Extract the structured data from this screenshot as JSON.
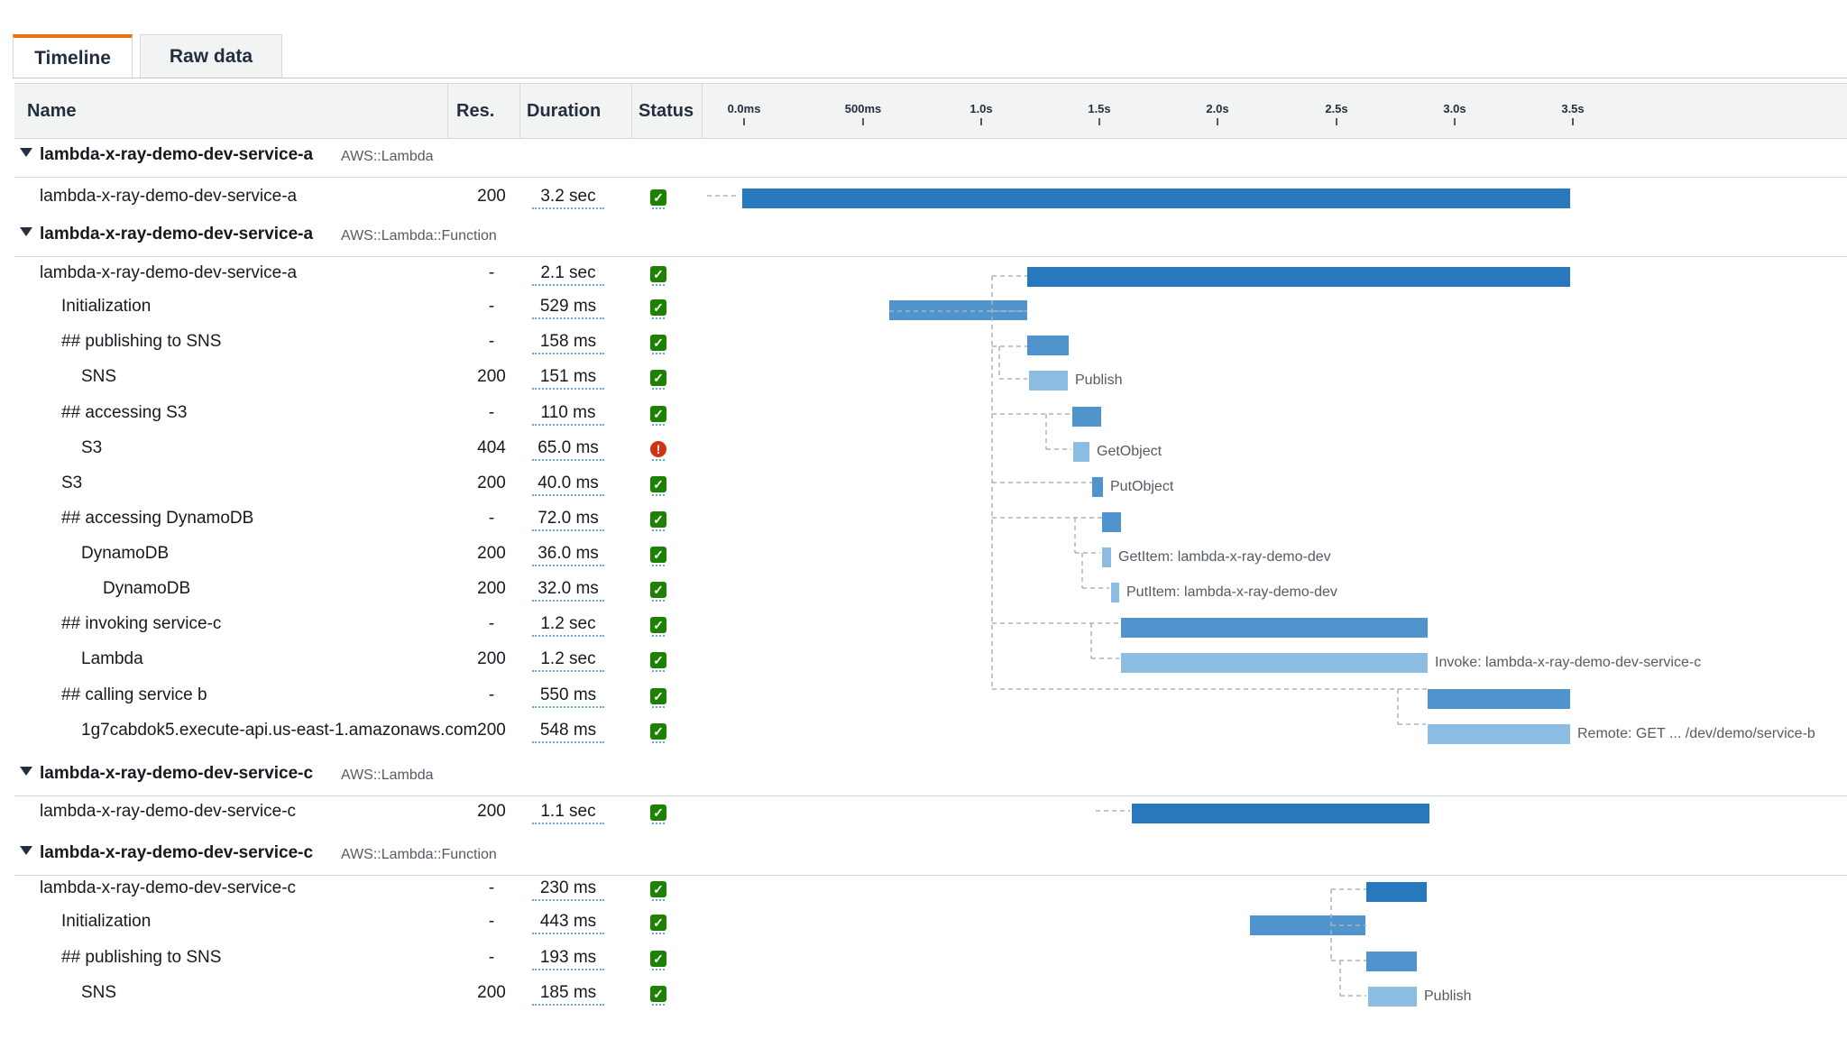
{
  "tabs": [
    {
      "label": "Timeline",
      "active": true
    },
    {
      "label": "Raw data",
      "active": false
    }
  ],
  "columns": {
    "name": "Name",
    "res": "Res.",
    "duration": "Duration",
    "status": "Status"
  },
  "timeline_ticks": [
    "0.0ms",
    "500ms",
    "1.0s",
    "1.5s",
    "2.0s",
    "2.5s",
    "3.0s",
    "3.5s"
  ],
  "colors": {
    "bar_dark": "#2878be",
    "bar_mid": "#4f94cd",
    "bar_light": "#8dbce2",
    "ok": "#1d8102",
    "error": "#d13212",
    "tab_accent": "#ec7211"
  },
  "groups": [
    {
      "name": "lambda-x-ray-demo-dev-service-a",
      "type": "AWS::Lambda"
    },
    {
      "name": "lambda-x-ray-demo-dev-service-a",
      "type": "AWS::Lambda::Function"
    },
    {
      "name": "lambda-x-ray-demo-dev-service-c",
      "type": "AWS::Lambda"
    },
    {
      "name": "lambda-x-ray-demo-dev-service-c",
      "type": "AWS::Lambda::Function"
    }
  ],
  "segments": [
    {
      "name": "lambda-x-ray-demo-dev-service-a",
      "res": "200",
      "duration": "3.2 sec",
      "status": "ok",
      "label": ""
    },
    {
      "name": "lambda-x-ray-demo-dev-service-a",
      "res": "-",
      "duration": "2.1 sec",
      "status": "ok",
      "label": ""
    },
    {
      "name": "Initialization",
      "res": "-",
      "duration": "529 ms",
      "status": "ok",
      "label": ""
    },
    {
      "name": "## publishing to SNS",
      "res": "-",
      "duration": "158 ms",
      "status": "ok",
      "label": ""
    },
    {
      "name": "SNS",
      "res": "200",
      "duration": "151 ms",
      "status": "ok",
      "label": "Publish"
    },
    {
      "name": "## accessing S3",
      "res": "-",
      "duration": "110 ms",
      "status": "ok",
      "label": ""
    },
    {
      "name": "S3",
      "res": "404",
      "duration": "65.0 ms",
      "status": "error",
      "label": "GetObject"
    },
    {
      "name": "S3",
      "res": "200",
      "duration": "40.0 ms",
      "status": "ok",
      "label": "PutObject"
    },
    {
      "name": "## accessing DynamoDB",
      "res": "-",
      "duration": "72.0 ms",
      "status": "ok",
      "label": ""
    },
    {
      "name": "DynamoDB",
      "res": "200",
      "duration": "36.0 ms",
      "status": "ok",
      "label": "GetItem: lambda-x-ray-demo-dev"
    },
    {
      "name": "DynamoDB",
      "res": "200",
      "duration": "32.0 ms",
      "status": "ok",
      "label": "PutItem: lambda-x-ray-demo-dev"
    },
    {
      "name": "## invoking service-c",
      "res": "-",
      "duration": "1.2 sec",
      "status": "ok",
      "label": ""
    },
    {
      "name": "Lambda",
      "res": "200",
      "duration": "1.2 sec",
      "status": "ok",
      "label": "Invoke: lambda-x-ray-demo-dev-service-c"
    },
    {
      "name": "## calling service b",
      "res": "-",
      "duration": "550 ms",
      "status": "ok",
      "label": ""
    },
    {
      "name": "1g7cabdok5.execute-api.us-east-1.amazonaws.com",
      "res": "200",
      "duration": "548 ms",
      "status": "ok",
      "label": "Remote: GET ... /dev/demo/service-b"
    },
    {
      "name": "lambda-x-ray-demo-dev-service-c",
      "res": "200",
      "duration": "1.1 sec",
      "status": "ok",
      "label": ""
    },
    {
      "name": "lambda-x-ray-demo-dev-service-c",
      "res": "-",
      "duration": "230 ms",
      "status": "ok",
      "label": ""
    },
    {
      "name": "Initialization",
      "res": "-",
      "duration": "443 ms",
      "status": "ok",
      "label": ""
    },
    {
      "name": "## publishing to SNS",
      "res": "-",
      "duration": "193 ms",
      "status": "ok",
      "label": ""
    },
    {
      "name": "SNS",
      "res": "200",
      "duration": "185 ms",
      "status": "ok",
      "label": "Publish"
    }
  ]
}
